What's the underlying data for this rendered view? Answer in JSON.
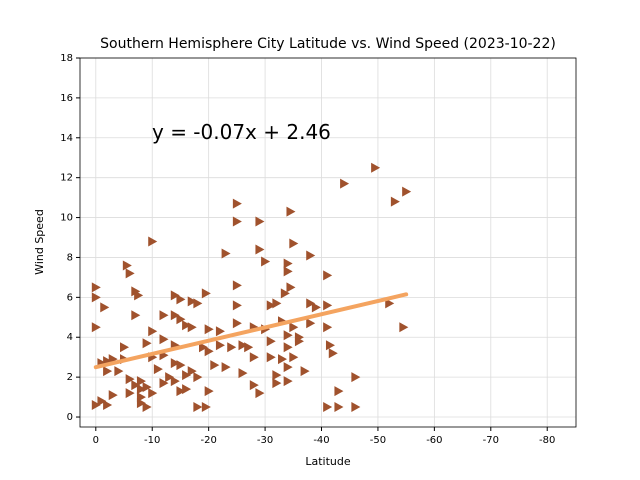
{
  "chart_data": {
    "type": "scatter",
    "title": "Southern Hemisphere City Latitude vs. Wind Speed (2023-10-22)",
    "x_label": "Latitude",
    "y_label": "Wind Speed",
    "color": "#a0522d",
    "marker": "triangle-right",
    "x": [
      -49.5,
      -44,
      -55,
      -53,
      -25,
      -34.5,
      -25,
      -29,
      -10,
      -35,
      -29,
      -23,
      -38,
      -30,
      -34,
      -5.5,
      -6,
      -34,
      -41,
      0,
      -25,
      -34.5,
      -7,
      -7.5,
      -19.5,
      -33.5,
      0,
      -14,
      -15,
      -17,
      -18,
      -25,
      -31,
      -32,
      -38,
      -39,
      -41,
      -52,
      -1.5,
      -7,
      -12,
      -14,
      -15,
      -16,
      -17,
      -20,
      -22,
      -25,
      -28,
      -30,
      -33,
      -35,
      -38,
      -41,
      -54.5,
      0,
      -10,
      -12,
      -14,
      -19,
      -22,
      -24,
      -26,
      -27,
      -31,
      -34,
      -36,
      -41.5,
      -42,
      -5,
      -9,
      -10,
      -12,
      -20,
      -28,
      -31,
      -33,
      -35,
      -1,
      -2,
      -3,
      -5,
      -11,
      -14,
      -15,
      -17,
      -21,
      -23,
      -34,
      -2,
      -4,
      -6,
      -8,
      -13,
      -16,
      -18,
      -26,
      -32,
      -37,
      -46,
      -7,
      -8,
      -9,
      -12,
      -14,
      -16,
      -20,
      -28,
      -32,
      -34,
      -43,
      -3,
      -6,
      -8,
      -10,
      -15,
      -29,
      -1,
      -2,
      -8,
      -9,
      -18,
      -19.5,
      -41,
      -43,
      -46,
      0,
      -34,
      -36
    ],
    "values": [
      12.5,
      11.7,
      11.3,
      10.8,
      10.7,
      10.3,
      9.8,
      9.8,
      8.8,
      8.7,
      8.4,
      8.2,
      8.1,
      7.8,
      7.7,
      7.6,
      7.2,
      7.3,
      7.1,
      6.5,
      6.6,
      6.5,
      6.3,
      6.1,
      6.2,
      6.2,
      6.0,
      6.1,
      5.9,
      5.8,
      5.7,
      5.6,
      5.6,
      5.7,
      5.7,
      5.5,
      5.6,
      5.7,
      5.5,
      5.1,
      5.1,
      5.1,
      4.9,
      4.6,
      4.5,
      4.4,
      4.3,
      4.7,
      4.5,
      4.4,
      4.8,
      4.5,
      4.7,
      4.5,
      4.5,
      4.5,
      4.3,
      3.9,
      3.6,
      3.5,
      3.6,
      3.5,
      3.6,
      3.5,
      3.8,
      3.5,
      3.8,
      3.6,
      3.2,
      3.5,
      3.7,
      3.0,
      3.1,
      3.3,
      3.0,
      3.0,
      2.9,
      3.0,
      2.7,
      2.8,
      2.9,
      2.9,
      2.4,
      2.7,
      2.6,
      2.3,
      2.6,
      2.5,
      2.5,
      2.3,
      2.3,
      1.9,
      1.8,
      2.0,
      2.1,
      2.0,
      2.2,
      2.1,
      2.3,
      2.0,
      1.6,
      1.4,
      1.5,
      1.7,
      1.8,
      1.4,
      1.3,
      1.6,
      1.7,
      1.8,
      1.3,
      1.1,
      1.2,
      1.0,
      1.2,
      1.3,
      1.2,
      0.8,
      0.6,
      0.7,
      0.5,
      0.5,
      0.5,
      0.5,
      0.5,
      0.5,
      0.6,
      4.1,
      4.0
    ],
    "regression": {
      "x": [
        0,
        -55
      ],
      "values": [
        2.5,
        6.15
      ],
      "color": "#f4a460"
    },
    "annotation": "y = -0.07x + 2.46",
    "xlim": [
      2.8,
      -85.1
    ],
    "ylim": [
      -0.5,
      18
    ],
    "xticks": [
      0,
      -10,
      -20,
      -30,
      -40,
      -50,
      -60,
      -70,
      -80
    ],
    "yticks": [
      0,
      2,
      4,
      6,
      8,
      10,
      12,
      14,
      16,
      18
    ],
    "grid": true
  }
}
